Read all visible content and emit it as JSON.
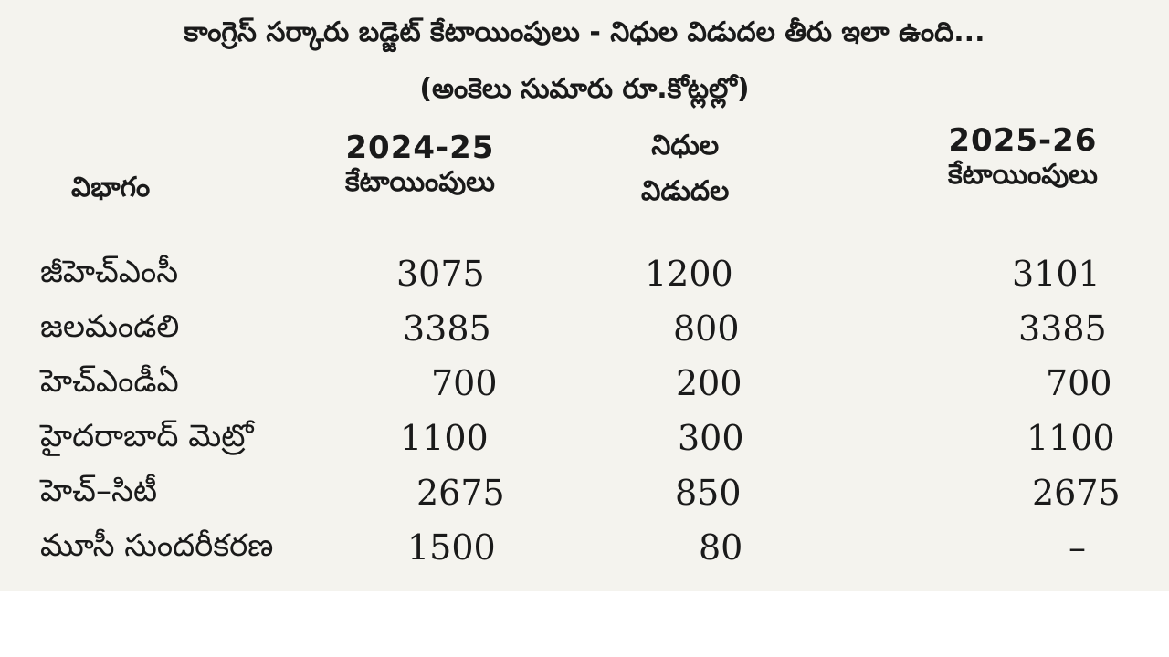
{
  "title": "కాంగ్రెస్ సర్కారు బడ్జెట్ కేటాయింపులు - నిధుల విడుదల తీరు ఇలా ఉంది...",
  "subtitle": "(అంకెలు సుమారు రూ.కోట్లల్లో)",
  "headers": {
    "department": "విభాగం",
    "alloc_2024_year": "2024-25",
    "alloc_2024_label": "కేటాయింపులు",
    "release_line1": "నిధుల",
    "release_line2": "విడుదల",
    "alloc_2025_year": "2025-26",
    "alloc_2025_label": "కేటాయింపులు"
  },
  "rows": [
    {
      "name": "జీహెచ్ఎంసీ",
      "alloc_2024": "3075",
      "released": "1200",
      "alloc_2025": "3101"
    },
    {
      "name": "జలమండలి",
      "alloc_2024": "3385",
      "released": "800",
      "alloc_2025": "3385"
    },
    {
      "name": "హెచ్ఎండీఏ",
      "alloc_2024": "700",
      "released": "200",
      "alloc_2025": "700"
    },
    {
      "name": "హైదరాబాద్ మెట్రో",
      "alloc_2024": "1100",
      "released": "300",
      "alloc_2025": "1100"
    },
    {
      "name": "హెచ్–సిటీ",
      "alloc_2024": "2675",
      "released": "850",
      "alloc_2025": "2675"
    },
    {
      "name": "మూసీ సుందరీకరణ",
      "alloc_2024": "1500",
      "released": "80",
      "alloc_2025": "–"
    }
  ]
}
